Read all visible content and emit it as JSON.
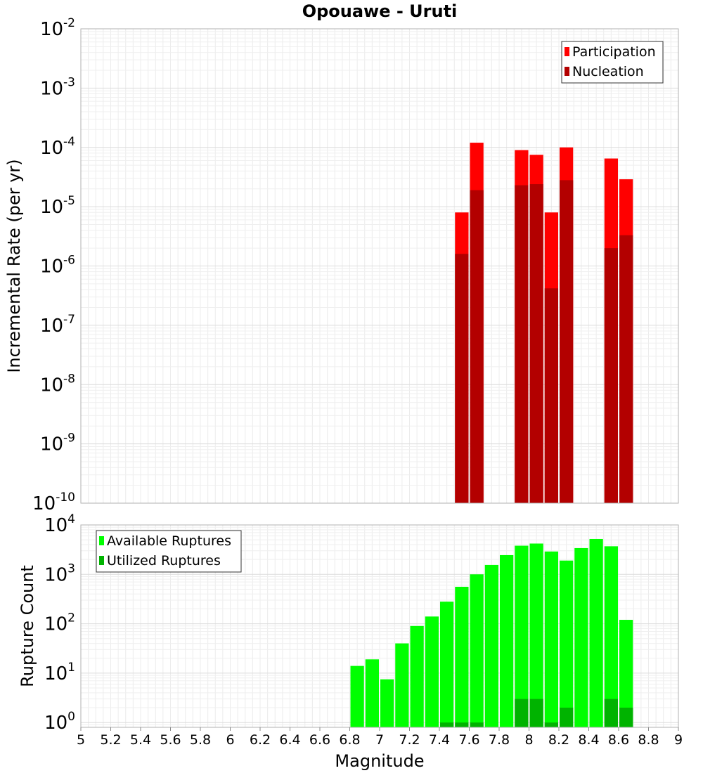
{
  "chart_data": {
    "title": "Opouawe - Uruti",
    "xlabel": "Magnitude",
    "xlim": [
      5,
      9
    ],
    "x_ticks": [
      "5",
      "5.2",
      "5.4",
      "5.6",
      "5.8",
      "6",
      "6.2",
      "6.4",
      "6.6",
      "6.8",
      "7",
      "7.2",
      "7.4",
      "7.6",
      "7.8",
      "8",
      "8.2",
      "8.4",
      "8.6",
      "8.8",
      "9"
    ],
    "bin_width": 0.1,
    "grid": true,
    "panels": [
      {
        "type": "bar",
        "ylabel": "Incremental Rate (per yr)",
        "yscale": "log",
        "ylim": [
          1e-10,
          0.01
        ],
        "y_tick_exponents": [
          "-10",
          "-9",
          "-8",
          "-7",
          "-6",
          "-5",
          "-4",
          "-3",
          "-2"
        ],
        "y_tick_base": "10",
        "legend_position": "top-right",
        "series": [
          {
            "name": "Participation",
            "color": "#ff0000",
            "x": [
              7.55,
              7.65,
              7.95,
              8.05,
              8.15,
              8.25,
              8.55,
              8.65
            ],
            "values": [
              8e-06,
              0.00012,
              9e-05,
              7.5e-05,
              8e-06,
              0.0001,
              6.5e-05,
              2.9e-05
            ]
          },
          {
            "name": "Nucleation",
            "color": "#b30000",
            "x": [
              7.55,
              7.65,
              7.95,
              8.05,
              8.15,
              8.25,
              8.55,
              8.65
            ],
            "values": [
              1.6e-06,
              1.9e-05,
              2.3e-05,
              2.4e-05,
              4.2e-07,
              2.8e-05,
              2e-06,
              3.3e-06
            ]
          }
        ]
      },
      {
        "type": "bar",
        "ylabel": "Rupture Count",
        "yscale": "log",
        "ylim": [
          0.8,
          10000
        ],
        "y_tick_exponents": [
          "0",
          "1",
          "2",
          "3",
          "4"
        ],
        "y_tick_base": "10",
        "legend_position": "top-left",
        "series": [
          {
            "name": "Available Ruptures",
            "color": "#00ff00",
            "x": [
              6.85,
              6.95,
              7.05,
              7.15,
              7.25,
              7.35,
              7.45,
              7.55,
              7.65,
              7.75,
              7.85,
              7.95,
              8.05,
              8.15,
              8.25,
              8.35,
              8.45,
              8.55,
              8.65
            ],
            "values": [
              14,
              19,
              7.5,
              40,
              90,
              140,
              280,
              560,
              1000,
              1550,
              2450,
              3800,
              4200,
              2900,
              1900,
              3400,
              5200,
              3700,
              120
            ]
          },
          {
            "name": "Utilized Ruptures",
            "color": "#00b300",
            "x": [
              7.45,
              7.55,
              7.65,
              7.95,
              8.05,
              8.15,
              8.25,
              8.55,
              8.65
            ],
            "values": [
              1,
              1,
              1,
              3,
              3,
              1,
              2,
              3,
              2
            ]
          }
        ]
      }
    ]
  }
}
